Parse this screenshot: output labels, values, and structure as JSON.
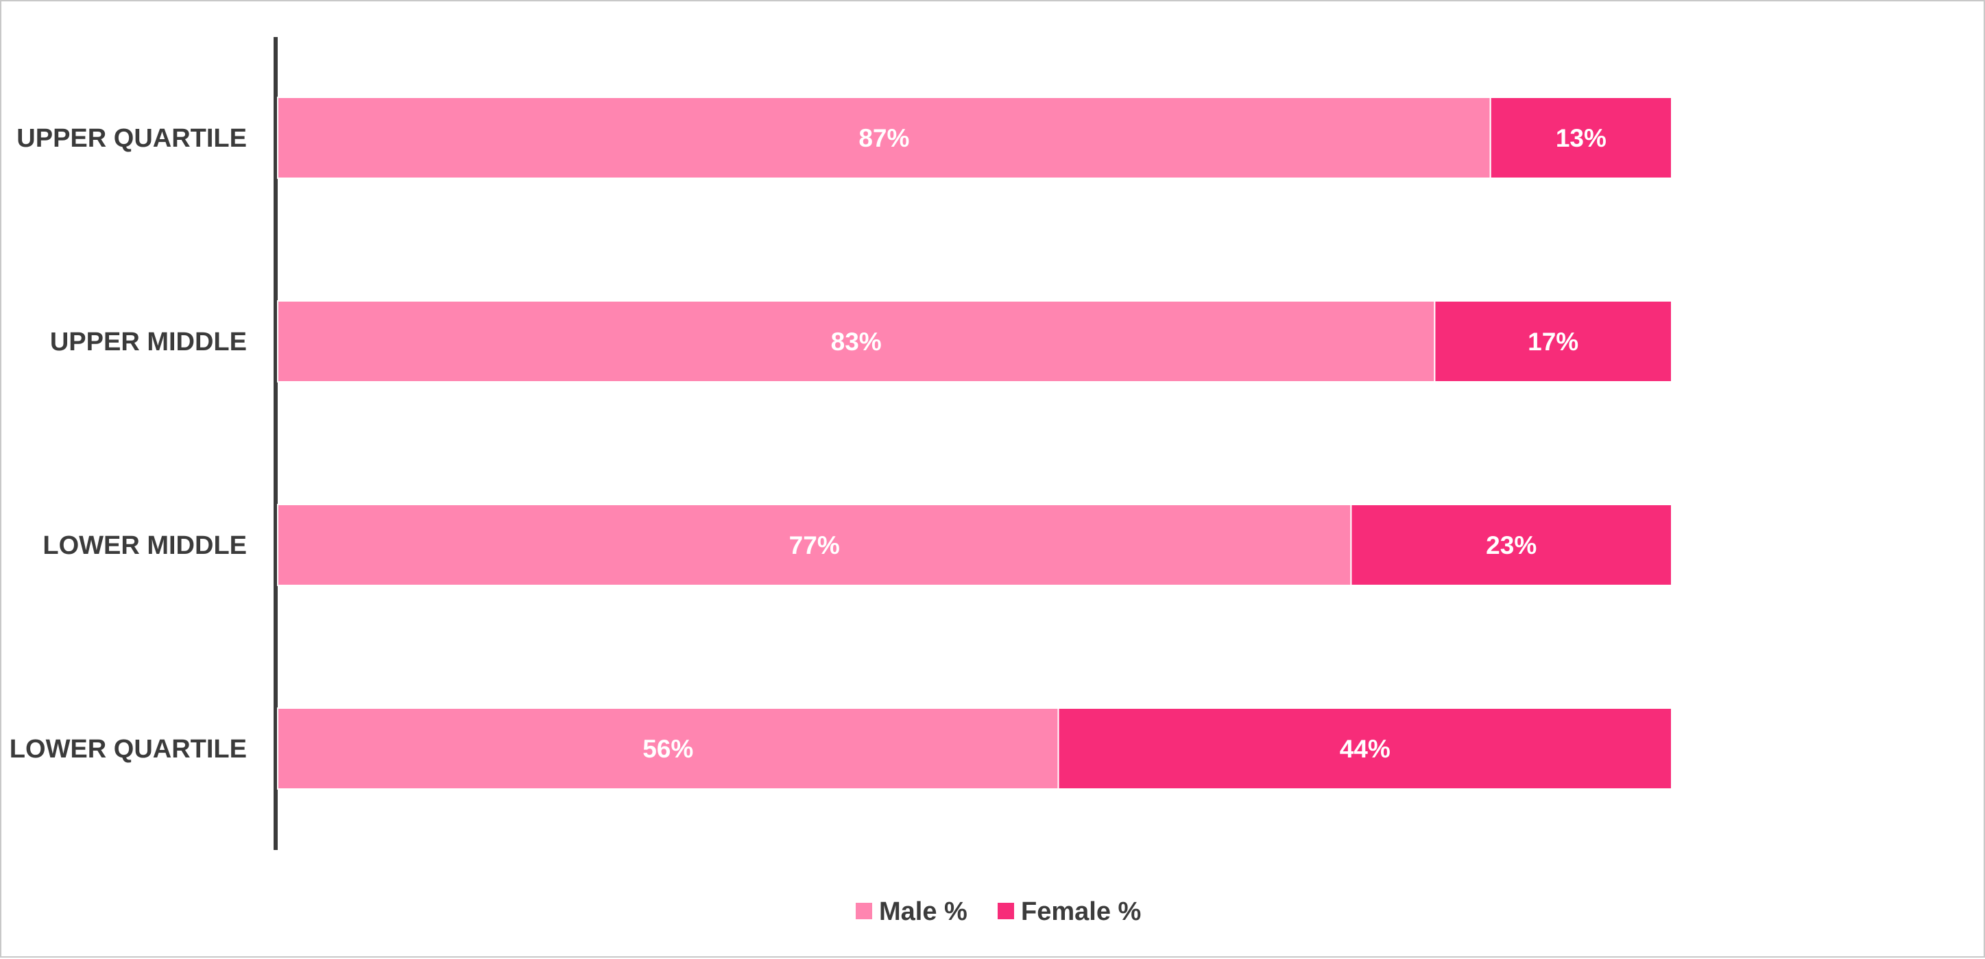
{
  "chart_data": {
    "type": "bar",
    "orientation": "horizontal",
    "stacked": true,
    "categories": [
      "UPPER QUARTILE",
      "UPPER MIDDLE",
      "LOWER MIDDLE",
      "LOWER QUARTILE"
    ],
    "series": [
      {
        "name": "Male %",
        "color": "#ff85b0",
        "values": [
          87,
          83,
          77,
          56
        ],
        "labels": [
          "87%",
          "83%",
          "77%",
          "56%"
        ]
      },
      {
        "name": "Female %",
        "color": "#f72c79",
        "values": [
          13,
          17,
          23,
          44
        ],
        "labels": [
          "13%",
          "17%",
          "23%",
          "44%"
        ]
      }
    ],
    "xlim": [
      0,
      100
    ],
    "grid": false,
    "legend_position": "bottom-center",
    "axis_color": "#3b3b3b",
    "title": "",
    "xlabel": "",
    "ylabel": ""
  }
}
